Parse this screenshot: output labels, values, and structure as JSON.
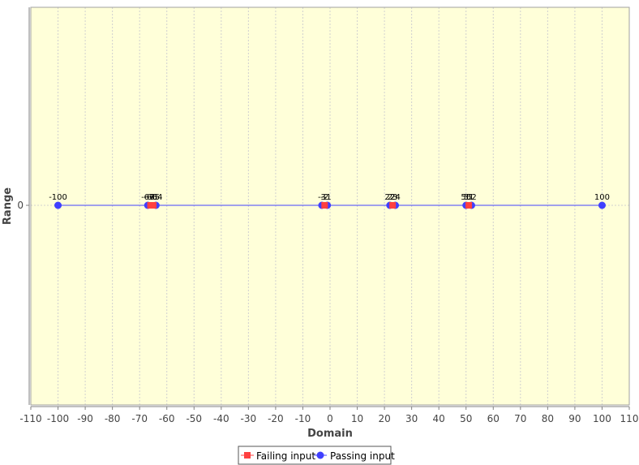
{
  "chart_data": {
    "type": "scatter",
    "title": "",
    "xlabel": "Domain",
    "ylabel": "Range",
    "xlim": [
      -110,
      110
    ],
    "x_ticks": [
      -110,
      -100,
      -90,
      -80,
      -70,
      -60,
      -50,
      -40,
      -30,
      -20,
      -10,
      0,
      10,
      20,
      30,
      40,
      50,
      60,
      70,
      80,
      90,
      100,
      110
    ],
    "y_ticks": [
      0
    ],
    "grid": true,
    "legend_position": "bottom-center",
    "background_color": "#ffffd9",
    "series": [
      {
        "name": "Failing input",
        "color": "#ff4040",
        "marker": "square",
        "points": [
          {
            "x": -66,
            "y": 0,
            "label": "-66"
          },
          {
            "x": -65,
            "y": 0,
            "label": "-65"
          },
          {
            "x": -2,
            "y": 0,
            "label": "-2"
          },
          {
            "x": 23,
            "y": 0,
            "label": "23"
          },
          {
            "x": 51,
            "y": 0,
            "label": "51"
          }
        ]
      },
      {
        "name": "Passing input",
        "color": "#4040ff",
        "marker": "circle",
        "points": [
          {
            "x": -100,
            "y": 0,
            "label": "-100"
          },
          {
            "x": -67,
            "y": 0,
            "label": "-67"
          },
          {
            "x": -64,
            "y": 0,
            "label": "-64"
          },
          {
            "x": -3,
            "y": 0,
            "label": "-3"
          },
          {
            "x": -1,
            "y": 0,
            "label": "-1"
          },
          {
            "x": 22,
            "y": 0,
            "label": "22"
          },
          {
            "x": 24,
            "y": 0,
            "label": "24"
          },
          {
            "x": 50,
            "y": 0,
            "label": "50"
          },
          {
            "x": 52,
            "y": 0,
            "label": "52"
          },
          {
            "x": 100,
            "y": 0,
            "label": "100"
          }
        ]
      }
    ]
  }
}
